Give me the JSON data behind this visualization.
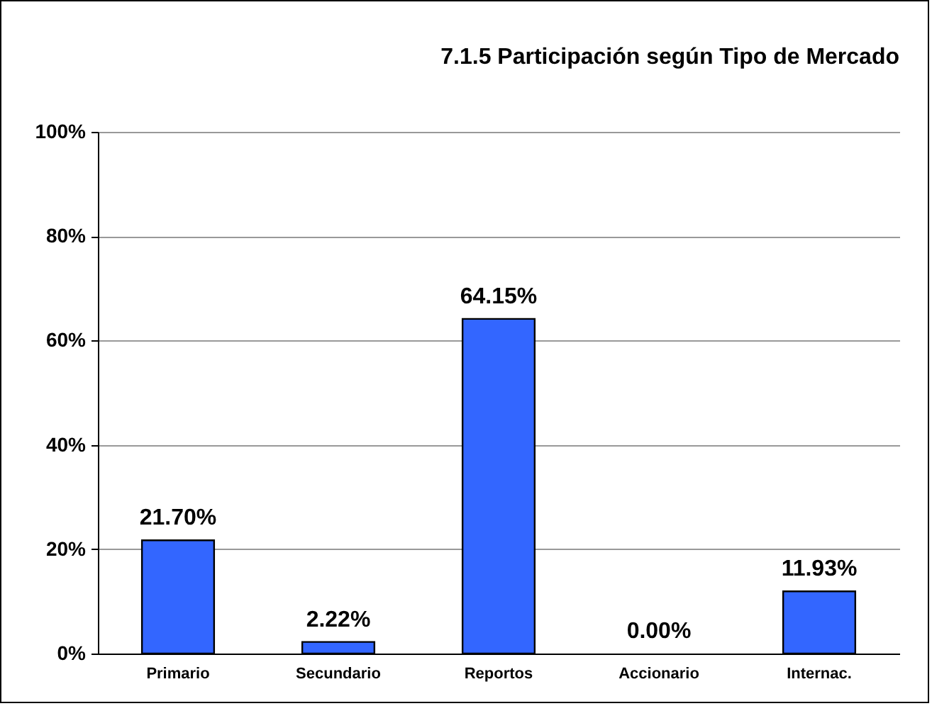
{
  "chart_data": {
    "type": "bar",
    "title": "7.1.5 Participación según Tipo de Mercado",
    "categories": [
      "Primario",
      "Secundario",
      "Reportos",
      "Accionario",
      "Internac."
    ],
    "values": [
      21.7,
      2.22,
      64.15,
      0.0,
      11.93
    ],
    "value_labels": [
      "21.70%",
      "2.22%",
      "64.15%",
      "0.00%",
      "11.93%"
    ],
    "color": "#3366ff",
    "ylim": [
      0,
      100
    ],
    "yticks": [
      {
        "value": 0,
        "label": "0%"
      },
      {
        "value": 20,
        "label": "20%"
      },
      {
        "value": 40,
        "label": "40%"
      },
      {
        "value": 60,
        "label": "60%"
      },
      {
        "value": 80,
        "label": "80%"
      },
      {
        "value": 100,
        "label": "100%"
      }
    ],
    "grid": "y"
  }
}
